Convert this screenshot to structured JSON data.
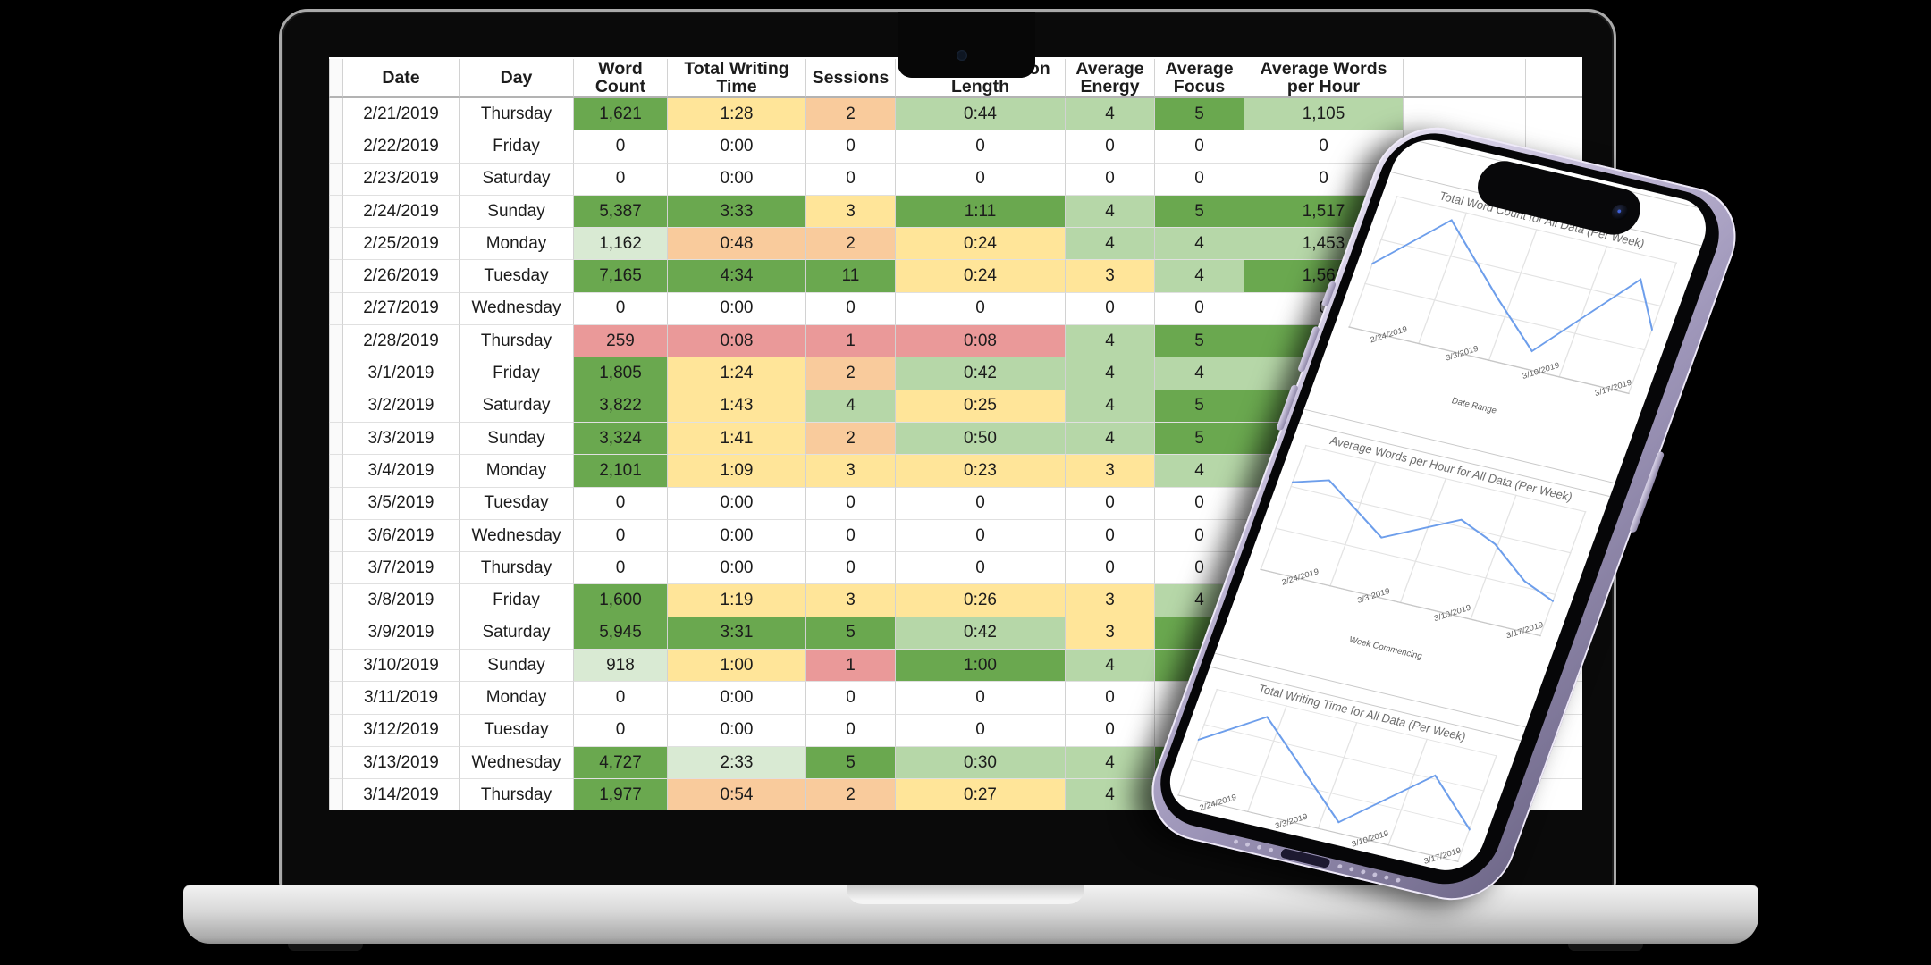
{
  "palette": {
    "g": "#6aa84f",
    "lg": "#b6d7a8",
    "pg": "#d9ead3",
    "y": "#ffe599",
    "o": "#f9cb9c",
    "r": "#ea9999",
    "w": "#ffffff"
  },
  "laptop": {
    "table": {
      "headers": [
        "Date",
        "Day",
        "Word Count",
        "Total Writing Time",
        "Sessions",
        "Average Session Length",
        "Average Energy",
        "Average Focus",
        "Average Words per Hour"
      ],
      "rows": [
        {
          "date": "2/21/2019",
          "day": "Thursday",
          "values": [
            "1,621",
            "1:28",
            "2",
            "0:44",
            "4",
            "5",
            "1,105"
          ],
          "colors": [
            "g",
            "y",
            "o",
            "lg",
            "lg",
            "g",
            "lg"
          ]
        },
        {
          "date": "2/22/2019",
          "day": "Friday",
          "values": [
            "0",
            "0:00",
            "0",
            "0",
            "0",
            "0",
            "0"
          ],
          "colors": [
            "w",
            "w",
            "w",
            "w",
            "w",
            "w",
            "w"
          ]
        },
        {
          "date": "2/23/2019",
          "day": "Saturday",
          "values": [
            "0",
            "0:00",
            "0",
            "0",
            "0",
            "0",
            "0"
          ],
          "colors": [
            "w",
            "w",
            "w",
            "w",
            "w",
            "w",
            "w"
          ]
        },
        {
          "date": "2/24/2019",
          "day": "Sunday",
          "values": [
            "5,387",
            "3:33",
            "3",
            "1:11",
            "4",
            "5",
            "1,517"
          ],
          "colors": [
            "g",
            "g",
            "y",
            "g",
            "lg",
            "g",
            "g"
          ]
        },
        {
          "date": "2/25/2019",
          "day": "Monday",
          "values": [
            "1,162",
            "0:48",
            "2",
            "0:24",
            "4",
            "4",
            "1,453"
          ],
          "colors": [
            "pg",
            "o",
            "o",
            "y",
            "lg",
            "lg",
            "lg"
          ]
        },
        {
          "date": "2/26/2019",
          "day": "Tuesday",
          "values": [
            "7,165",
            "4:34",
            "11",
            "0:24",
            "3",
            "4",
            "1,569"
          ],
          "colors": [
            "g",
            "g",
            "g",
            "y",
            "y",
            "lg",
            "g"
          ]
        },
        {
          "date": "2/27/2019",
          "day": "Wednesday",
          "values": [
            "0",
            "0:00",
            "0",
            "0",
            "0",
            "0",
            "0"
          ],
          "colors": [
            "w",
            "w",
            "w",
            "w",
            "w",
            "w",
            "w"
          ]
        },
        {
          "date": "2/28/2019",
          "day": "Thursday",
          "values": [
            "259",
            "0:08",
            "1",
            "0:08",
            "4",
            "5",
            "1,9"
          ],
          "colors": [
            "r",
            "r",
            "r",
            "r",
            "lg",
            "g",
            "g"
          ]
        },
        {
          "date": "3/1/2019",
          "day": "Friday",
          "values": [
            "1,805",
            "1:24",
            "2",
            "0:42",
            "4",
            "4",
            ""
          ],
          "colors": [
            "g",
            "y",
            "o",
            "lg",
            "lg",
            "lg",
            "lg"
          ]
        },
        {
          "date": "3/2/2019",
          "day": "Saturday",
          "values": [
            "3,822",
            "1:43",
            "4",
            "0:25",
            "4",
            "5",
            ""
          ],
          "colors": [
            "g",
            "y",
            "lg",
            "y",
            "lg",
            "g",
            "g"
          ]
        },
        {
          "date": "3/3/2019",
          "day": "Sunday",
          "values": [
            "3,324",
            "1:41",
            "2",
            "0:50",
            "4",
            "5",
            ""
          ],
          "colors": [
            "g",
            "y",
            "o",
            "lg",
            "lg",
            "g",
            "g"
          ]
        },
        {
          "date": "3/4/2019",
          "day": "Monday",
          "values": [
            "2,101",
            "1:09",
            "3",
            "0:23",
            "3",
            "4",
            ""
          ],
          "colors": [
            "g",
            "y",
            "y",
            "y",
            "y",
            "lg",
            "lg"
          ]
        },
        {
          "date": "3/5/2019",
          "day": "Tuesday",
          "values": [
            "0",
            "0:00",
            "0",
            "0",
            "0",
            "0",
            ""
          ],
          "colors": [
            "w",
            "w",
            "w",
            "w",
            "w",
            "w",
            "w"
          ]
        },
        {
          "date": "3/6/2019",
          "day": "Wednesday",
          "values": [
            "0",
            "0:00",
            "0",
            "0",
            "0",
            "0",
            ""
          ],
          "colors": [
            "w",
            "w",
            "w",
            "w",
            "w",
            "w",
            "w"
          ]
        },
        {
          "date": "3/7/2019",
          "day": "Thursday",
          "values": [
            "0",
            "0:00",
            "0",
            "0",
            "0",
            "0",
            ""
          ],
          "colors": [
            "w",
            "w",
            "w",
            "w",
            "w",
            "w",
            "w"
          ]
        },
        {
          "date": "3/8/2019",
          "day": "Friday",
          "values": [
            "1,600",
            "1:19",
            "3",
            "0:26",
            "3",
            "4",
            ""
          ],
          "colors": [
            "g",
            "y",
            "y",
            "y",
            "y",
            "lg",
            "g"
          ]
        },
        {
          "date": "3/9/2019",
          "day": "Saturday",
          "values": [
            "5,945",
            "3:31",
            "5",
            "0:42",
            "3",
            "",
            ""
          ],
          "colors": [
            "g",
            "g",
            "g",
            "lg",
            "y",
            "g",
            "lg"
          ]
        },
        {
          "date": "3/10/2019",
          "day": "Sunday",
          "values": [
            "918",
            "1:00",
            "1",
            "1:00",
            "4",
            "",
            ""
          ],
          "colors": [
            "pg",
            "y",
            "r",
            "g",
            "lg",
            "g",
            "g"
          ]
        },
        {
          "date": "3/11/2019",
          "day": "Monday",
          "values": [
            "0",
            "0:00",
            "0",
            "0",
            "0",
            "0",
            ""
          ],
          "colors": [
            "w",
            "w",
            "w",
            "w",
            "w",
            "w",
            "w"
          ]
        },
        {
          "date": "3/12/2019",
          "day": "Tuesday",
          "values": [
            "0",
            "0:00",
            "0",
            "0",
            "0",
            "0",
            ""
          ],
          "colors": [
            "w",
            "w",
            "w",
            "w",
            "w",
            "w",
            "w"
          ]
        },
        {
          "date": "3/13/2019",
          "day": "Wednesday",
          "values": [
            "4,727",
            "2:33",
            "5",
            "0:30",
            "4",
            "",
            ""
          ],
          "colors": [
            "g",
            "pg",
            "g",
            "lg",
            "lg",
            "g",
            "g"
          ]
        },
        {
          "date": "3/14/2019",
          "day": "Thursday",
          "values": [
            "1,977",
            "0:54",
            "2",
            "0:27",
            "4",
            "",
            ""
          ],
          "colors": [
            "g",
            "o",
            "o",
            "y",
            "lg",
            "lg",
            "g"
          ]
        }
      ]
    }
  },
  "phone": {
    "header_title": "All Data (Per Week)"
  },
  "chart_data": [
    {
      "type": "line",
      "title": "Total Word Count for All Data (Per Week)",
      "xlabel": "Date Range",
      "x_ticks": [
        "2/24/2019",
        "3/3/2019",
        "3/10/2019",
        "3/17/2019"
      ],
      "series_color": "#6d9eeb",
      "grid": true,
      "legend": "none",
      "points_norm": [
        [
          0,
          0.52
        ],
        [
          0.21,
          0.08
        ],
        [
          0.45,
          0.54
        ],
        [
          0.63,
          0.86
        ],
        [
          0.9,
          0.18
        ],
        [
          1,
          0.52
        ]
      ]
    },
    {
      "type": "line",
      "title": "Average Words per Hour for All Data (Per Week)",
      "xlabel": "Week Commencing",
      "x_ticks": [
        "2/24/2019",
        "3/3/2019",
        "3/10/2019",
        "3/17/2019"
      ],
      "series_color": "#6d9eeb",
      "grid": true,
      "legend": "none",
      "points_norm": [
        [
          0,
          0.3
        ],
        [
          0.12,
          0.22
        ],
        [
          0.36,
          0.55
        ],
        [
          0.6,
          0.28
        ],
        [
          0.74,
          0.4
        ],
        [
          0.88,
          0.62
        ],
        [
          1,
          0.72
        ]
      ]
    },
    {
      "type": "line",
      "title": "Total Writing Time for All Data (Per Week)",
      "xlabel": "Week Commencing",
      "x_ticks": [
        "2/24/2019",
        "3/3/2019",
        "3/10/2019",
        "3/17/2019"
      ],
      "series_color": "#6d9eeb",
      "grid": true,
      "legend": "none",
      "points_norm": [
        [
          0,
          0.48
        ],
        [
          0.2,
          0.14
        ],
        [
          0.56,
          0.9
        ],
        [
          0.82,
          0.3
        ],
        [
          1,
          0.7
        ]
      ]
    }
  ]
}
